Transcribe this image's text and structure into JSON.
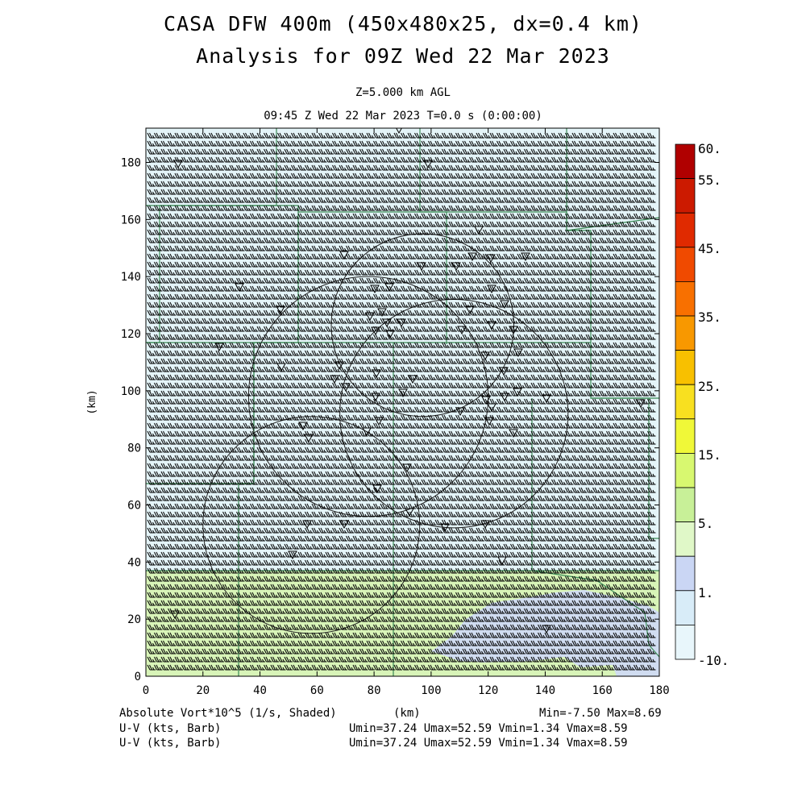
{
  "title_line1": "CASA DFW 400m (450x480x25, dx=0.4 km)",
  "title_line2": "Analysis for 09Z Wed 22 Mar 2023",
  "level_label": "Z=5.000 km AGL",
  "time_label": "09:45 Z Wed 22 Mar 2023    T=0.0 s (0:00:00)",
  "footer": {
    "field1": "Absolute Vort*10^5 (1/s, Shaded)",
    "field2": "U-V (kts, Barb)",
    "field3": "U-V (kts, Barb)",
    "xunit": "(km)",
    "minmax": "Min=-7.50 Max=8.69",
    "uv2": "Umin=37.24 Umax=52.59 Vmin=1.34 Vmax=8.59",
    "uv3": "Umin=37.24 Umax=52.59 Vmin=1.34 Vmax=8.59"
  },
  "chart_data": {
    "type": "heatmap",
    "xlabel": "(km)",
    "ylabel": "(km)",
    "xlim": [
      0,
      180
    ],
    "ylim": [
      0,
      192
    ],
    "x_ticks": [
      0,
      20,
      40,
      60,
      80,
      100,
      120,
      140,
      160,
      180
    ],
    "y_ticks": [
      0,
      20,
      40,
      60,
      80,
      100,
      120,
      140,
      160,
      180
    ],
    "colorbar": {
      "labels": [
        "60.",
        "55.",
        "45.",
        "35.",
        "25.",
        "15.",
        "5.",
        "1.",
        "-10."
      ],
      "colors": [
        "#b00000",
        "#cc1a00",
        "#e02a00",
        "#f04a00",
        "#f87000",
        "#f89800",
        "#f8c000",
        "#f8e020",
        "#f0f838",
        "#d8f870",
        "#c8f098",
        "#e0f8c8",
        "#cad6f4",
        "#d8ecf8",
        "#e8f6fb"
      ]
    },
    "shaded_regions": [
      {
        "name": "background",
        "value_range": "-10 to 1",
        "color": "#e4f4f8"
      },
      {
        "name": "southern band",
        "y_range": [
          0,
          37
        ],
        "value_range": "5 to 15",
        "color": "#d8f4b8"
      },
      {
        "name": "southeast patch",
        "value_range": "1 to 5",
        "color": "#d0dcf0"
      }
    ],
    "wind": {
      "u_range": [
        37.24,
        52.59
      ],
      "v_range": [
        1.34,
        8.59
      ],
      "units": "kts"
    },
    "range_rings_km": [
      {
        "center": [
          97,
          123
        ],
        "radius": 32
      },
      {
        "center": [
          78,
          98
        ],
        "radius": 42
      },
      {
        "center": [
          58,
          53
        ],
        "radius": 38
      },
      {
        "center": [
          108,
          92
        ],
        "radius": 40
      }
    ]
  }
}
